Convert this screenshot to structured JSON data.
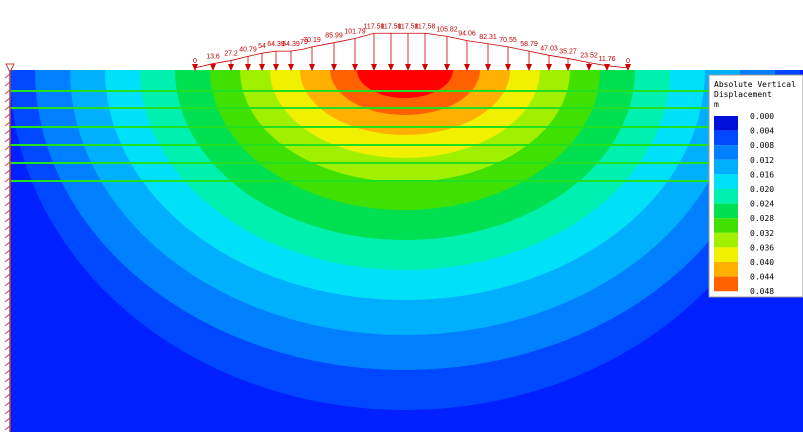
{
  "loads": [
    "0",
    "13.6",
    "27.2",
    "40.79",
    "54",
    "64.39",
    "64.39",
    "79",
    "70.19",
    "85.99",
    "101.79",
    "117.58",
    "117.58",
    "117.58",
    "117.58",
    "105.82",
    "94.06",
    "82.31",
    "70.55",
    "58.79",
    "47.03",
    "35.27",
    "23.52",
    "11.76",
    "0"
  ],
  "legend": {
    "title": [
      "Absolute Vertical",
      "Displacement",
      "m"
    ],
    "labels": [
      "0.000",
      "0.004",
      "0.008",
      "0.012",
      "0.016",
      "0.020",
      "0.024",
      "0.028",
      "0.032",
      "0.036",
      "0.040",
      "0.044",
      "0.048"
    ]
  }
}
